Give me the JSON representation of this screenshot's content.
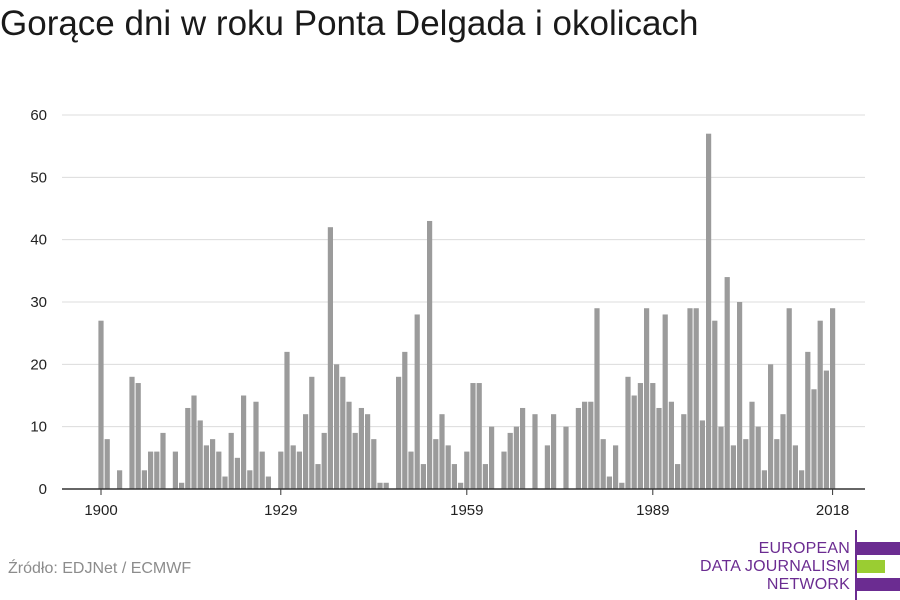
{
  "chart_data": {
    "type": "bar",
    "title": "Gorące dni w roku Ponta Delgada i okolicach",
    "xlabel": "",
    "ylabel": "",
    "x_start_year": 1900,
    "x_tick_labels": [
      "1900",
      "1929",
      "1959",
      "1989",
      "2018"
    ],
    "y_ticks": [
      0,
      10,
      20,
      30,
      40,
      50,
      60
    ],
    "ylim": [
      0,
      60
    ],
    "grid": true,
    "bar_color": "#9b9b9b",
    "values": [
      27,
      8,
      0,
      3,
      0,
      18,
      17,
      3,
      6,
      6,
      9,
      0,
      6,
      1,
      13,
      15,
      11,
      7,
      8,
      6,
      2,
      9,
      5,
      15,
      3,
      14,
      6,
      2,
      0,
      6,
      22,
      7,
      6,
      12,
      18,
      4,
      9,
      42,
      20,
      18,
      14,
      9,
      13,
      12,
      8,
      1,
      1,
      0,
      18,
      22,
      6,
      28,
      4,
      43,
      8,
      12,
      7,
      4,
      1,
      6,
      17,
      17,
      4,
      10,
      0,
      6,
      9,
      10,
      13,
      0,
      12,
      0,
      7,
      12,
      0,
      10,
      0,
      13,
      14,
      14,
      29,
      8,
      2,
      7,
      1,
      18,
      15,
      17,
      29,
      17,
      13,
      28,
      14,
      4,
      12,
      29,
      29,
      11,
      57,
      27,
      10,
      34,
      7,
      30,
      8,
      14,
      10,
      3,
      20,
      8,
      12,
      29,
      7,
      3,
      22,
      16,
      27,
      19,
      29
    ]
  },
  "source": "Źródło: EDJNet / ECMWF",
  "logo": {
    "line1": "EUROPEAN",
    "line2": "DATA JOURNALISM",
    "line3": "NETWORK",
    "purple": "#6b2c91",
    "green": "#9acd32"
  }
}
